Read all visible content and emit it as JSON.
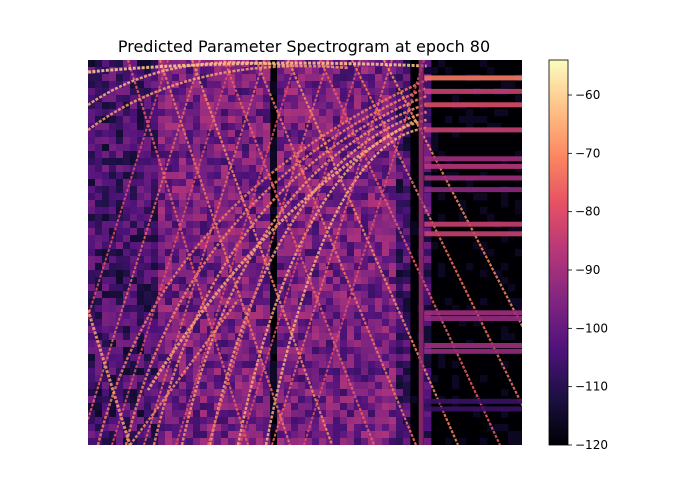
{
  "chart_data": {
    "type": "heatmap",
    "title": "Predicted Parameter Spectrogram at epoch 80",
    "xlabel": "",
    "ylabel": "",
    "colormap": "magma",
    "axes_visible": false,
    "colorbar": {
      "range": [
        -120,
        -54
      ],
      "ticks": [
        -60,
        -70,
        -80,
        -90,
        -100,
        -110,
        -120
      ],
      "tick_labels": [
        "−60",
        "−70",
        "−80",
        "−90",
        "−100",
        "−110",
        "−120"
      ]
    },
    "colors": {
      "low": "#000004",
      "high": "#fcfdbf",
      "mid": "#e75263"
    }
  }
}
